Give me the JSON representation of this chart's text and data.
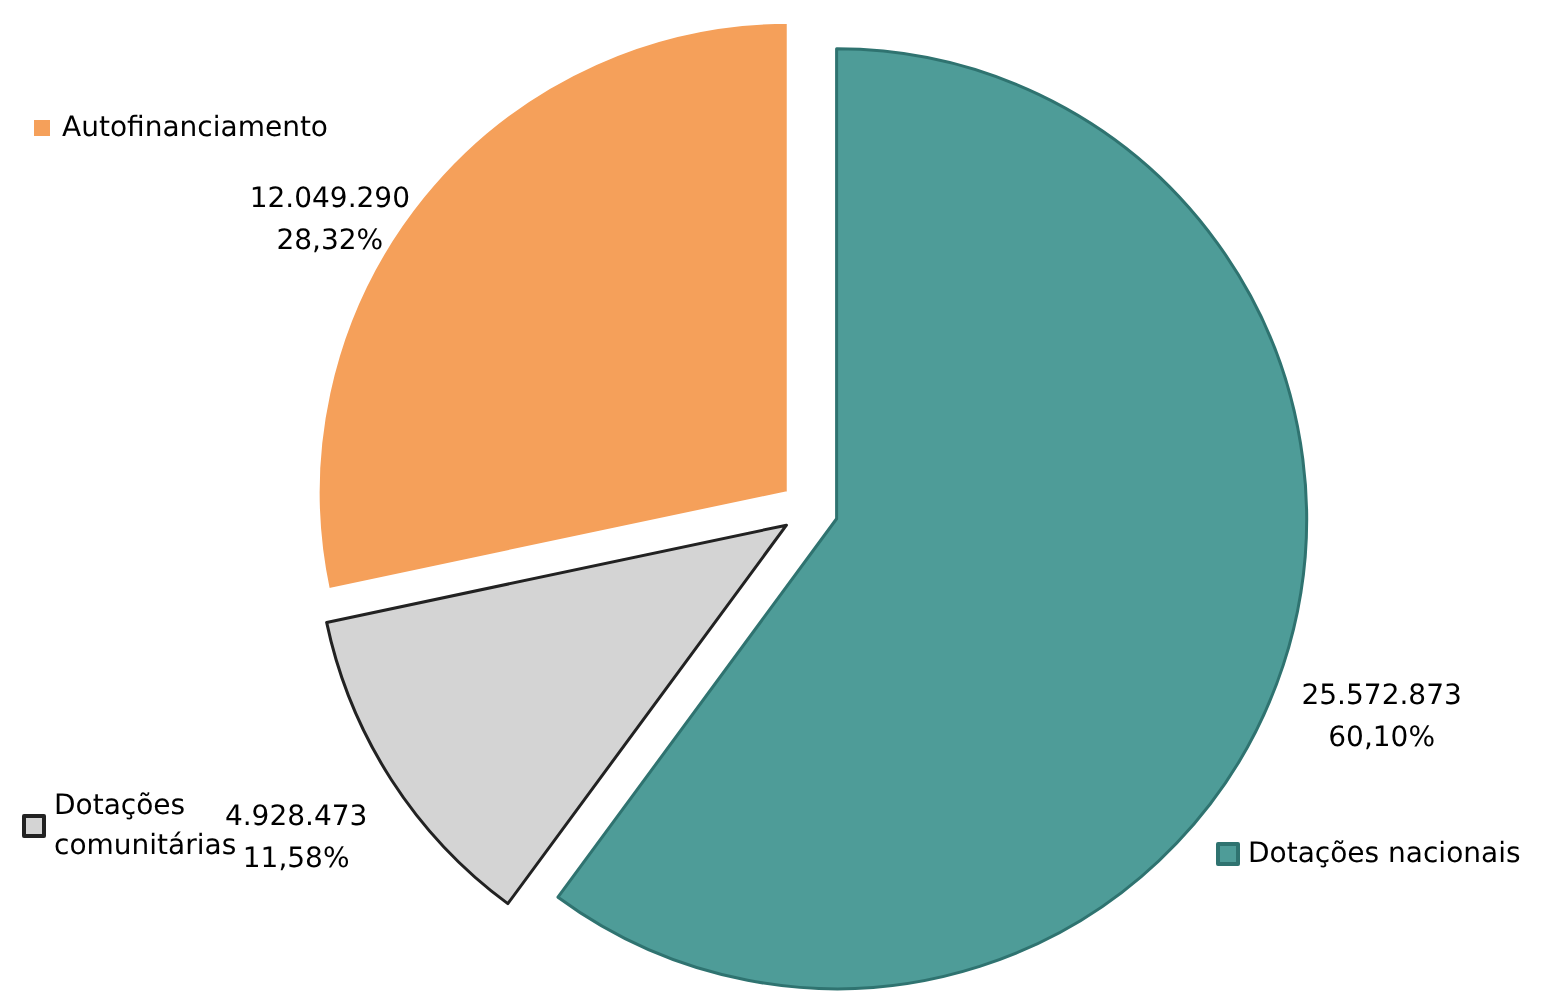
{
  "chart_data": {
    "type": "pie",
    "categories": [
      "Dotações nacionais",
      "Dotações comunitárias",
      "Autofinanciamento"
    ],
    "values": [
      25572873,
      4928473,
      12049290
    ],
    "colors": [
      "#4e9c98",
      "#d4d4d4",
      "#f5a05a"
    ],
    "value_labels": [
      "25.572.873\n60,10%",
      "4.928.473\n11,58%",
      "12.049.290\n28,32%"
    ],
    "legend": "left"
  }
}
